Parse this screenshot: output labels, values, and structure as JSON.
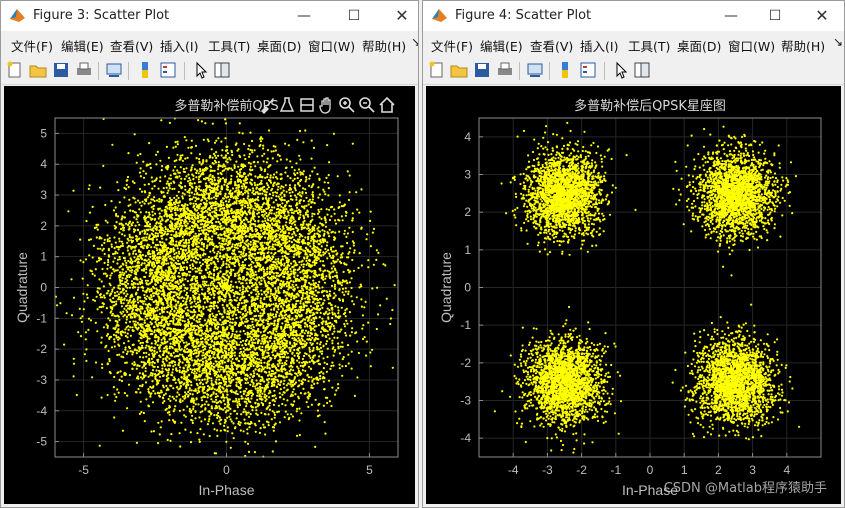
{
  "windows": [
    {
      "title": "Figure 3: Scatter Plot",
      "menu": [
        "文件(F)",
        "编辑(E)",
        "查看(V)",
        "插入(I)",
        "工具(T)",
        "桌面(D)",
        "窗口(W)",
        "帮助(H)"
      ],
      "chart_data": {
        "type": "scatter",
        "title": "多普勒补偿前QPS",
        "xlabel": "In-Phase",
        "ylabel": "Quadrature",
        "xlim": [
          -6,
          6
        ],
        "ylim": [
          -5.5,
          5.5
        ],
        "xticks": [
          -5,
          0,
          5
        ],
        "yticks": [
          -5,
          -4,
          -3,
          -2,
          -1,
          0,
          1,
          2,
          3,
          4,
          5
        ],
        "grid": true,
        "marker_color": "#ffff00",
        "distribution": "ring",
        "ring_radius": 2.8,
        "ring_spread": 1.1,
        "point_count": 9000
      }
    },
    {
      "title": "Figure 4: Scatter Plot",
      "menu": [
        "文件(F)",
        "编辑(E)",
        "查看(V)",
        "插入(I)",
        "工具(T)",
        "桌面(D)",
        "窗口(W)",
        "帮助(H)"
      ],
      "chart_data": {
        "type": "scatter",
        "title": "多普勒补偿后QPSK星座图",
        "xlabel": "In-Phase",
        "ylabel": "Quadrature",
        "xlim": [
          -5,
          5
        ],
        "ylim": [
          -4.5,
          4.5
        ],
        "xticks": [
          -4,
          -3,
          -2,
          -1,
          0,
          1,
          2,
          3,
          4
        ],
        "yticks": [
          -4,
          -3,
          -2,
          -1,
          0,
          1,
          2,
          3,
          4
        ],
        "grid": true,
        "marker_color": "#ffff00",
        "distribution": "clusters",
        "cluster_centers": [
          [
            -2.5,
            2.5
          ],
          [
            2.5,
            2.5
          ],
          [
            -2.5,
            -2.5
          ],
          [
            2.5,
            -2.5
          ]
        ],
        "cluster_spread": 0.55,
        "points_per_cluster": 2200
      }
    }
  ],
  "watermark": "CSDN @Matlab程序猿助手"
}
